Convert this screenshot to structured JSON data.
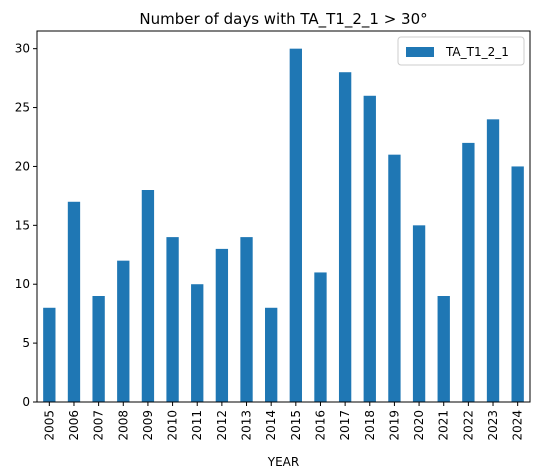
{
  "chart_data": {
    "type": "bar",
    "title": "Number of days with TA_T1_2_1 > 30°",
    "xlabel": "YEAR",
    "ylabel": "",
    "categories": [
      "2005",
      "2006",
      "2007",
      "2008",
      "2009",
      "2010",
      "2011",
      "2012",
      "2013",
      "2014",
      "2015",
      "2016",
      "2017",
      "2018",
      "2019",
      "2020",
      "2021",
      "2022",
      "2023",
      "2024"
    ],
    "series": [
      {
        "name": "TA_T1_2_1",
        "color": "#1f77b4",
        "values": [
          8,
          17,
          9,
          12,
          18,
          14,
          10,
          13,
          14,
          8,
          30,
          11,
          28,
          26,
          21,
          15,
          9,
          22,
          24,
          20
        ]
      }
    ],
    "ylim": [
      0,
      31.5
    ],
    "yticks": [
      0,
      5,
      10,
      15,
      20,
      25,
      30
    ],
    "grid": false,
    "legend_position": "top-right"
  }
}
